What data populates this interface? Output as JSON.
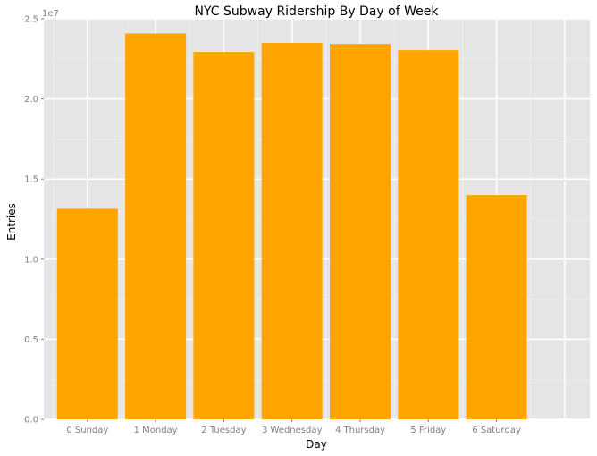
{
  "chart_data": {
    "type": "bar",
    "title": "NYC Subway Ridership By Day of Week",
    "xlabel": "Day",
    "ylabel": "Entries",
    "y_scale_label": "1e7",
    "categories": [
      "0 Sunday",
      "1 Monday",
      "2 Tuesday",
      "3 Wednesday",
      "4 Thursday",
      "5 Friday",
      "6 Saturday"
    ],
    "values": [
      13150000,
      24080000,
      22930000,
      23490000,
      23430000,
      23040000,
      14000000
    ],
    "ylim": [
      0,
      25000000
    ],
    "y_ticks": [
      0,
      5000000,
      10000000,
      15000000,
      20000000,
      25000000
    ],
    "y_tick_labels": [
      "0.0",
      "0.5",
      "1.0",
      "1.5",
      "2.0",
      "2.5"
    ],
    "bar_color": "#ffa500",
    "panel_color": "#e5e5e5",
    "grid": true
  }
}
